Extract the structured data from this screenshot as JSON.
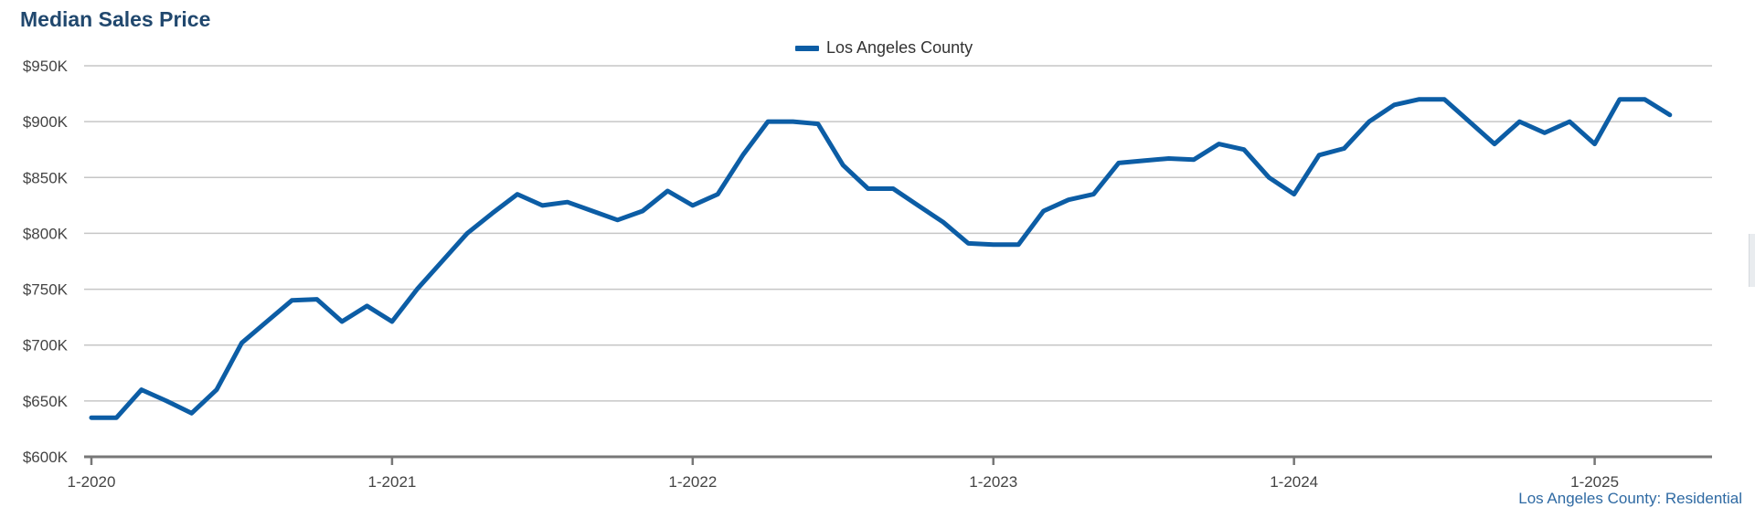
{
  "chart_data": {
    "type": "line",
    "title": "Median Sales Price",
    "footer_note": "Los Angeles County: Residential",
    "legend_position": "top-center",
    "grid": true,
    "ylim": [
      600000,
      950000
    ],
    "y_ticks": [
      {
        "value": 950000,
        "label": "$950K"
      },
      {
        "value": 900000,
        "label": "$900K"
      },
      {
        "value": 850000,
        "label": "$850K"
      },
      {
        "value": 800000,
        "label": "$800K"
      },
      {
        "value": 750000,
        "label": "$750K"
      },
      {
        "value": 700000,
        "label": "$700K"
      },
      {
        "value": 650000,
        "label": "$650K"
      },
      {
        "value": 600000,
        "label": "$600K"
      }
    ],
    "x_ticks": [
      "1-2020",
      "1-2021",
      "1-2022",
      "1-2023",
      "1-2024",
      "1-2025"
    ],
    "x": [
      "2020-01",
      "2020-02",
      "2020-03",
      "2020-04",
      "2020-05",
      "2020-06",
      "2020-07",
      "2020-08",
      "2020-09",
      "2020-10",
      "2020-11",
      "2020-12",
      "2021-01",
      "2021-02",
      "2021-03",
      "2021-04",
      "2021-05",
      "2021-06",
      "2021-07",
      "2021-08",
      "2021-09",
      "2021-10",
      "2021-11",
      "2021-12",
      "2022-01",
      "2022-02",
      "2022-03",
      "2022-04",
      "2022-05",
      "2022-06",
      "2022-07",
      "2022-08",
      "2022-09",
      "2022-10",
      "2022-11",
      "2022-12",
      "2023-01",
      "2023-02",
      "2023-03",
      "2023-04",
      "2023-05",
      "2023-06",
      "2023-07",
      "2023-08",
      "2023-09",
      "2023-10",
      "2023-11",
      "2023-12",
      "2024-01",
      "2024-02",
      "2024-03",
      "2024-04",
      "2024-05",
      "2024-06",
      "2024-07",
      "2024-08",
      "2024-09",
      "2024-10",
      "2024-11",
      "2024-12",
      "2025-01",
      "2025-02",
      "2025-03",
      "2025-04"
    ],
    "series": [
      {
        "name": "Los Angeles County",
        "color": "#0c5da5",
        "values": [
          635000,
          635000,
          660000,
          650000,
          639000,
          660000,
          702000,
          721000,
          740000,
          741000,
          721000,
          735000,
          721000,
          750000,
          775000,
          800000,
          818000,
          835000,
          825000,
          828000,
          820000,
          812000,
          820000,
          838000,
          825000,
          835000,
          870000,
          900000,
          900000,
          898000,
          861000,
          840000,
          840000,
          825000,
          810000,
          791000,
          790000,
          790000,
          820000,
          830000,
          835000,
          863000,
          865000,
          867000,
          866000,
          880000,
          875000,
          850000,
          835000,
          870000,
          876000,
          900000,
          915000,
          920000,
          920000,
          900000,
          880000,
          900000,
          890000,
          900000,
          880000,
          920000,
          920000,
          906000
        ]
      }
    ]
  }
}
